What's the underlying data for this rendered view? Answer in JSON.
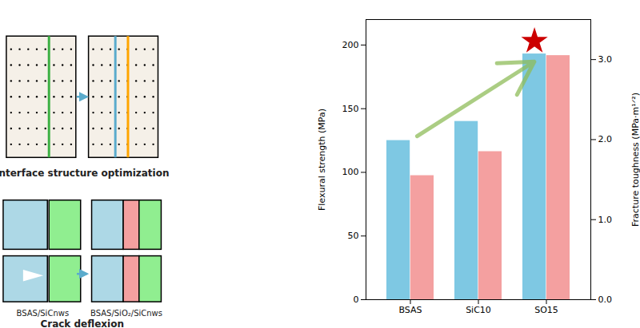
{
  "chart_data": {
    "type": "bar",
    "categories": [
      "BSAS",
      "SiC10",
      "SO15"
    ],
    "series": [
      {
        "color": "#7EC8E3",
        "values": [
          125,
          140,
          193
        ]
      },
      {
        "color": "#F4A0A0",
        "values": [
          1.55,
          1.85,
          3.05
        ],
        "axis": "y2"
      }
    ],
    "ylabel": "Flexural strength (MPa)",
    "y2label": "Fracture toughness (MPa·m¹ᐟ²)",
    "ylim": [
      0,
      220
    ],
    "yticks": [
      0,
      50,
      100,
      150,
      200
    ],
    "y2lim": [
      0,
      3.5
    ],
    "y2ticks": [
      0,
      1,
      2,
      3
    ],
    "annotations": [
      "Interface structure optimization",
      "BSAS/SiCnws",
      "BSAS/SiO₂/SiCnws",
      "Crack deflexion"
    ]
  }
}
